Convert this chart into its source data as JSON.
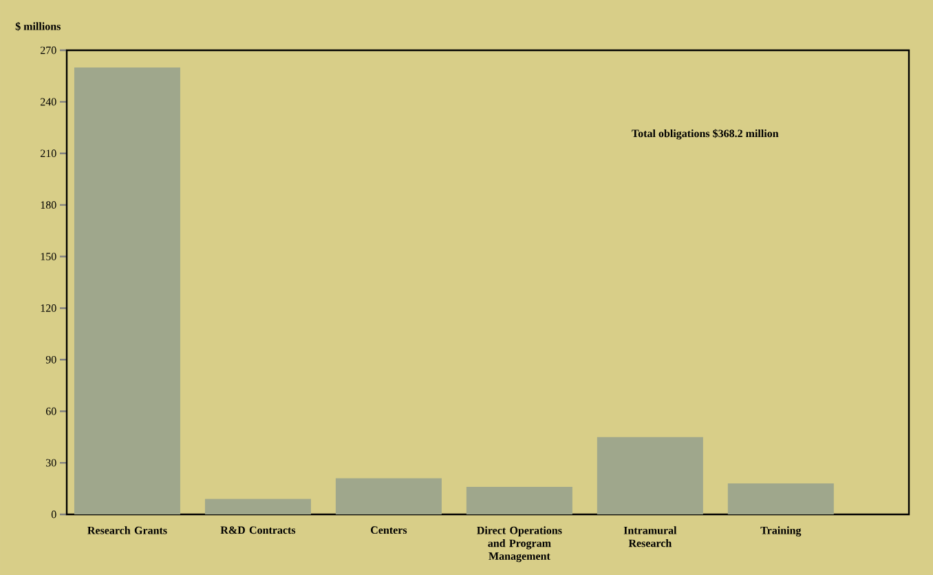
{
  "chart_data": {
    "type": "bar",
    "ylabel": "$ millions",
    "categories": [
      "Research Grants",
      "R&D Contracts",
      "Centers",
      "Direct Operations and Program Management",
      "Intramural Research",
      "Training"
    ],
    "values": [
      260,
      9,
      21,
      16,
      45,
      18
    ],
    "color": "#9fa78c",
    "ylim": [
      0,
      270
    ],
    "yticks": [
      0,
      30,
      60,
      90,
      120,
      150,
      180,
      210,
      240,
      270
    ],
    "annotations": [
      "Total obligations $368.2 million"
    ]
  }
}
